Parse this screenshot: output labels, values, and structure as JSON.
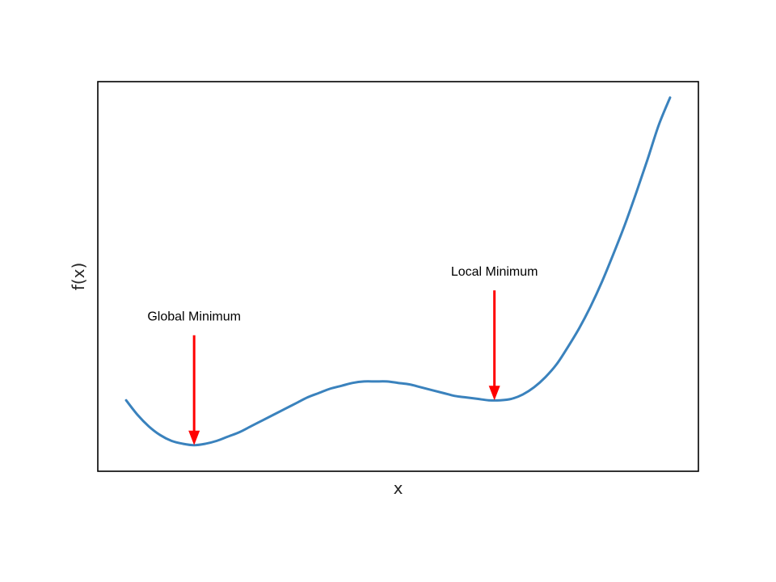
{
  "chart_data": {
    "type": "line",
    "title": "",
    "xlabel": "x",
    "ylabel": "f(x)",
    "xlim": [
      -1.65,
      3.65
    ],
    "ylim": [
      -2.4,
      24.5
    ],
    "grid": false,
    "ticks_visible": false,
    "line_color": "#3a82bd",
    "series": [
      {
        "x": [
          -1.4,
          -1.3,
          -1.2,
          -1.1,
          -1.0,
          -0.9,
          -0.8,
          -0.7,
          -0.6,
          -0.5,
          -0.4,
          -0.3,
          -0.2,
          -0.1,
          0.0,
          0.1,
          0.2,
          0.3,
          0.4,
          0.5,
          0.6,
          0.7,
          0.8,
          0.9,
          1.0,
          1.1,
          1.2,
          1.3,
          1.4,
          1.5,
          1.6,
          1.7,
          1.8,
          1.9,
          2.0,
          2.1,
          2.2,
          2.3,
          2.4,
          2.5,
          2.6,
          2.7,
          2.8,
          2.9,
          3.0,
          3.1,
          3.2,
          3.3,
          3.4
        ],
        "y": [
          2.5,
          1.5,
          0.7,
          0.1,
          -0.3,
          -0.5,
          -0.6,
          -0.5,
          -0.3,
          0.0,
          0.3,
          0.7,
          1.1,
          1.5,
          1.9,
          2.3,
          2.7,
          3.0,
          3.3,
          3.5,
          3.7,
          3.8,
          3.8,
          3.8,
          3.7,
          3.6,
          3.4,
          3.2,
          3.0,
          2.8,
          2.7,
          2.6,
          2.5,
          2.5,
          2.6,
          2.9,
          3.4,
          4.1,
          5.0,
          6.2,
          7.5,
          9.0,
          10.7,
          12.6,
          14.6,
          16.8,
          19.1,
          21.5,
          23.4
        ]
      }
    ],
    "annotations": [
      {
        "text": "Global Minimum",
        "x": -0.8,
        "y": -0.6,
        "color": "#ff0000"
      },
      {
        "text": "Local Minimum",
        "x": 1.85,
        "y": 2.5,
        "color": "#ff0000"
      }
    ]
  }
}
